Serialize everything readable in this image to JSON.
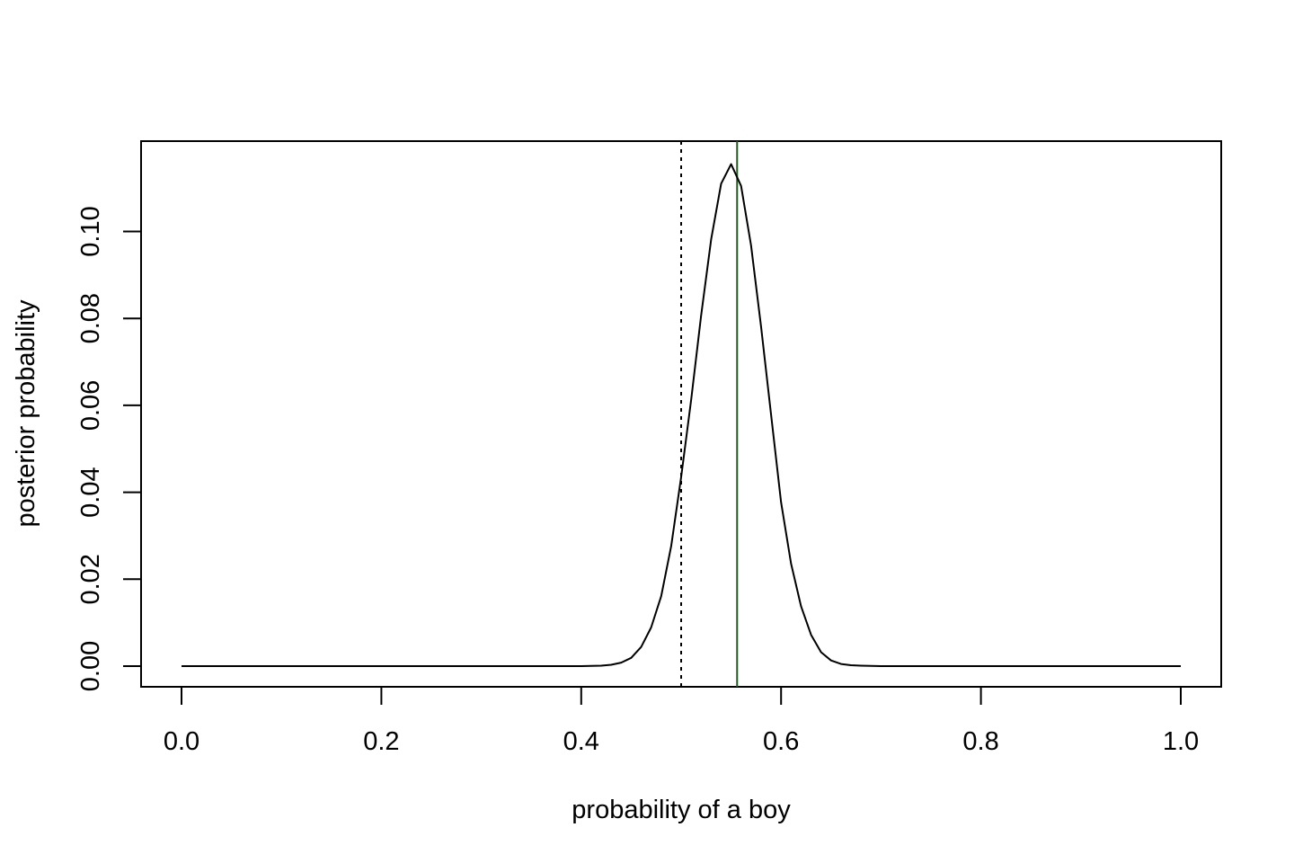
{
  "chart_data": {
    "type": "line",
    "title": "",
    "xlabel": "probability of a boy",
    "ylabel": "posterior probability",
    "xlim": [
      0,
      1
    ],
    "ylim": [
      0,
      0.115
    ],
    "x_ticks": [
      0.0,
      0.2,
      0.4,
      0.6,
      0.8,
      1.0
    ],
    "x_tick_labels": [
      "0.0",
      "0.2",
      "0.4",
      "0.6",
      "0.8",
      "1.0"
    ],
    "y_ticks": [
      0.0,
      0.02,
      0.04,
      0.06,
      0.08,
      0.1
    ],
    "y_tick_labels": [
      "0.00",
      "0.02",
      "0.04",
      "0.06",
      "0.08",
      "0.10"
    ],
    "grid": false,
    "legend": "none",
    "series": [
      {
        "color": "#000000",
        "line_style": "solid",
        "x": [
          0.0,
          0.1,
          0.2,
          0.3,
          0.38,
          0.4,
          0.42,
          0.43,
          0.44,
          0.45,
          0.46,
          0.47,
          0.48,
          0.49,
          0.5,
          0.51,
          0.52,
          0.53,
          0.54,
          0.55,
          0.56,
          0.57,
          0.58,
          0.59,
          0.6,
          0.61,
          0.62,
          0.63,
          0.64,
          0.65,
          0.66,
          0.67,
          0.68,
          0.7,
          0.8,
          0.9,
          1.0
        ],
        "y": [
          0.0,
          0.0,
          0.0,
          0.0,
          0.0,
          0.0,
          0.0001,
          0.0003,
          0.0008,
          0.0019,
          0.0044,
          0.0089,
          0.0161,
          0.0276,
          0.0435,
          0.0612,
          0.0806,
          0.0982,
          0.111,
          0.1155,
          0.1105,
          0.0968,
          0.078,
          0.0578,
          0.0377,
          0.0236,
          0.0138,
          0.0072,
          0.0032,
          0.0013,
          0.0005,
          0.0002,
          0.0001,
          0.0,
          0.0,
          0.0,
          0.0
        ]
      }
    ],
    "reference_lines": [
      {
        "orientation": "vertical",
        "x": 0.5,
        "style": "dotted",
        "color": "#000000"
      },
      {
        "orientation": "vertical",
        "x": 0.556,
        "style": "solid",
        "color": "#1f5c1f"
      }
    ]
  }
}
